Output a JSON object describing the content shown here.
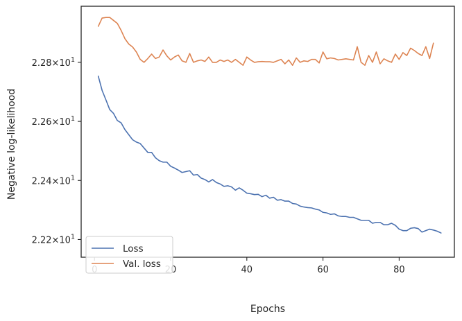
{
  "chart_data": {
    "type": "line",
    "xlabel": "Epochs",
    "ylabel": "Negative log-likelihood",
    "xlim": [
      -3.5,
      94.5
    ],
    "ylim": [
      22.14,
      22.99
    ],
    "x_ticks": [
      0,
      20,
      40,
      60,
      80
    ],
    "y_ticks": [
      {
        "value": 22.2,
        "mantissa": "2.22",
        "base": "10",
        "exponent": "1"
      },
      {
        "value": 22.4,
        "mantissa": "2.24",
        "base": "10",
        "exponent": "1"
      },
      {
        "value": 22.6,
        "mantissa": "2.26",
        "base": "10",
        "exponent": "1"
      },
      {
        "value": 22.8,
        "mantissa": "2.28",
        "base": "10",
        "exponent": "1"
      }
    ],
    "grid": false,
    "legend_position": "lower-left",
    "series": [
      {
        "name": "Loss",
        "color": "#4c72b0",
        "values": [
          22.753,
          22.705,
          22.673,
          22.64,
          22.627,
          22.603,
          22.595,
          22.572,
          22.555,
          22.538,
          22.53,
          22.525,
          22.51,
          22.495,
          22.495,
          22.477,
          22.467,
          22.462,
          22.462,
          22.448,
          22.442,
          22.435,
          22.427,
          22.43,
          22.433,
          22.418,
          22.42,
          22.408,
          22.403,
          22.395,
          22.403,
          22.393,
          22.388,
          22.38,
          22.382,
          22.378,
          22.367,
          22.375,
          22.367,
          22.357,
          22.355,
          22.352,
          22.353,
          22.345,
          22.35,
          22.34,
          22.343,
          22.333,
          22.335,
          22.33,
          22.33,
          22.322,
          22.32,
          22.313,
          22.31,
          22.308,
          22.307,
          22.303,
          22.3,
          22.292,
          22.29,
          22.285,
          22.287,
          22.28,
          22.278,
          22.278,
          22.275,
          22.275,
          22.27,
          22.265,
          22.265,
          22.265,
          22.255,
          22.258,
          22.258,
          22.25,
          22.25,
          22.255,
          22.248,
          22.235,
          22.23,
          22.23,
          22.238,
          22.24,
          22.237,
          22.225,
          22.23,
          22.235,
          22.232,
          22.228,
          22.222
        ]
      },
      {
        "name": "Val. loss",
        "color": "#dd8452",
        "values": [
          22.922,
          22.95,
          22.952,
          22.952,
          22.942,
          22.932,
          22.908,
          22.88,
          22.862,
          22.852,
          22.835,
          22.81,
          22.8,
          22.813,
          22.828,
          22.813,
          22.818,
          22.842,
          22.822,
          22.808,
          22.818,
          22.825,
          22.805,
          22.8,
          22.83,
          22.8,
          22.805,
          22.808,
          22.803,
          22.818,
          22.8,
          22.8,
          22.808,
          22.803,
          22.808,
          22.8,
          22.81,
          22.8,
          22.79,
          22.818,
          22.808,
          22.8,
          22.802,
          22.803,
          22.802,
          22.802,
          22.8,
          22.805,
          22.81,
          22.795,
          22.808,
          22.79,
          22.815,
          22.8,
          22.805,
          22.803,
          22.81,
          22.81,
          22.798,
          22.835,
          22.812,
          22.815,
          22.813,
          22.808,
          22.81,
          22.812,
          22.81,
          22.808,
          22.853,
          22.8,
          22.79,
          22.823,
          22.8,
          22.835,
          22.795,
          22.812,
          22.805,
          22.8,
          22.828,
          22.81,
          22.833,
          22.823,
          22.848,
          22.84,
          22.83,
          22.823,
          22.853,
          22.813,
          22.865
        ]
      }
    ]
  },
  "colors": {
    "axes_edge": "#262626",
    "background": "#ffffff"
  }
}
